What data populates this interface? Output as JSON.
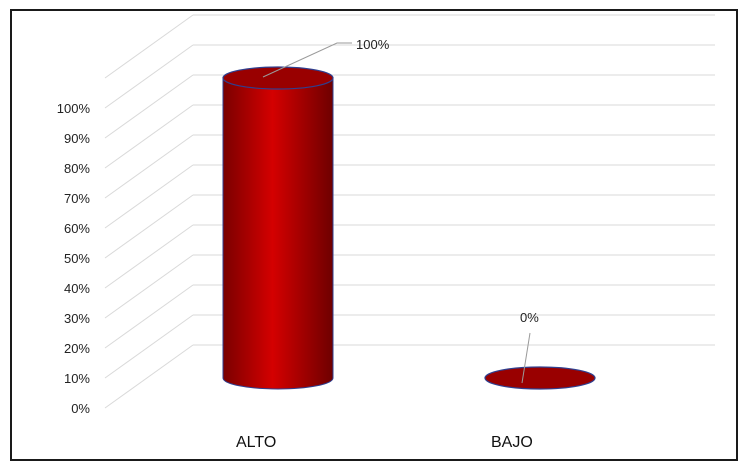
{
  "chart_data": {
    "type": "bar",
    "style": "3d-cylinder",
    "categories": [
      "ALTO",
      "BAJO"
    ],
    "values": [
      100,
      0
    ],
    "data_labels": [
      "100%",
      "0%"
    ],
    "ylim": [
      0,
      100
    ],
    "yticks": [
      "0%",
      "10%",
      "20%",
      "30%",
      "40%",
      "50%",
      "60%",
      "70%",
      "80%",
      "90%",
      "100%"
    ],
    "grid": true,
    "legend": "none",
    "colors": {
      "bar": "#c00000",
      "bar_dark": "#7a0000",
      "bar_top": "#990000",
      "bar_edge": "#2f3f8f",
      "grid": "#d9d9d9"
    }
  }
}
